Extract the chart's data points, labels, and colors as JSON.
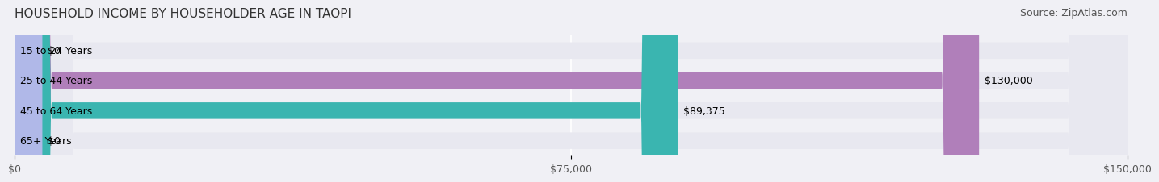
{
  "title": "HOUSEHOLD INCOME BY HOUSEHOLDER AGE IN TAOPI",
  "source": "Source: ZipAtlas.com",
  "categories": [
    "15 to 24 Years",
    "25 to 44 Years",
    "45 to 64 Years",
    "65+ Years"
  ],
  "values": [
    0,
    130000,
    89375,
    0
  ],
  "bar_colors": [
    "#a8c4e0",
    "#b07fba",
    "#3ab5b0",
    "#b0b8e8"
  ],
  "bar_labels": [
    "$0",
    "$130,000",
    "$89,375",
    "$0"
  ],
  "xlim": [
    0,
    150000
  ],
  "xticks": [
    0,
    75000,
    150000
  ],
  "xticklabels": [
    "$0",
    "$75,000",
    "$150,000"
  ],
  "background_color": "#f0f0f5",
  "bar_background_color": "#e8e8f0",
  "bar_height": 0.55,
  "title_fontsize": 11,
  "source_fontsize": 9,
  "label_fontsize": 9,
  "tick_fontsize": 9
}
